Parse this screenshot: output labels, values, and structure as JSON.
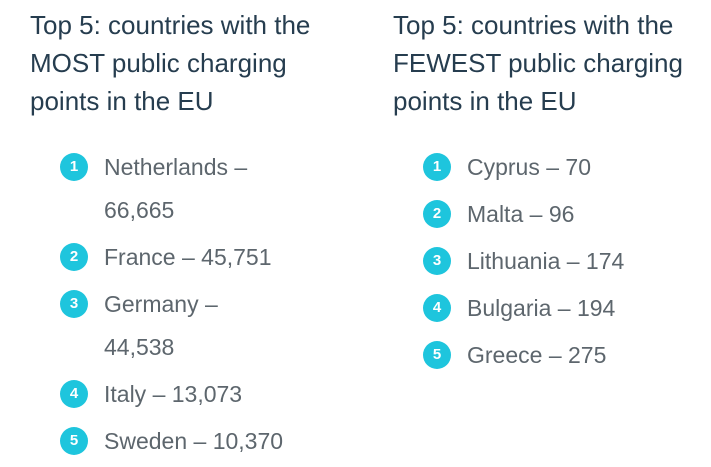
{
  "colors": {
    "badge": "#1ec5dd",
    "title": "#263d4f",
    "item_text": "#5d666d"
  },
  "most": {
    "title": "Top 5: countries with the MOST public charging points in the EU",
    "items": [
      {
        "rank": "1",
        "text": "Netherlands – 66,665"
      },
      {
        "rank": "2",
        "text": "France – 45,751"
      },
      {
        "rank": "3",
        "text": "Germany – 44,538"
      },
      {
        "rank": "4",
        "text": "Italy – 13,073"
      },
      {
        "rank": "5",
        "text": "Sweden – 10,370"
      }
    ]
  },
  "fewest": {
    "title": "Top 5: countries with the FEWEST public charging points in the EU",
    "items": [
      {
        "rank": "1",
        "text": "Cyprus – 70"
      },
      {
        "rank": "2",
        "text": "Malta – 96"
      },
      {
        "rank": "3",
        "text": "Lithuania – 174"
      },
      {
        "rank": "4",
        "text": "Bulgaria – 194"
      },
      {
        "rank": "5",
        "text": "Greece – 275"
      }
    ]
  }
}
